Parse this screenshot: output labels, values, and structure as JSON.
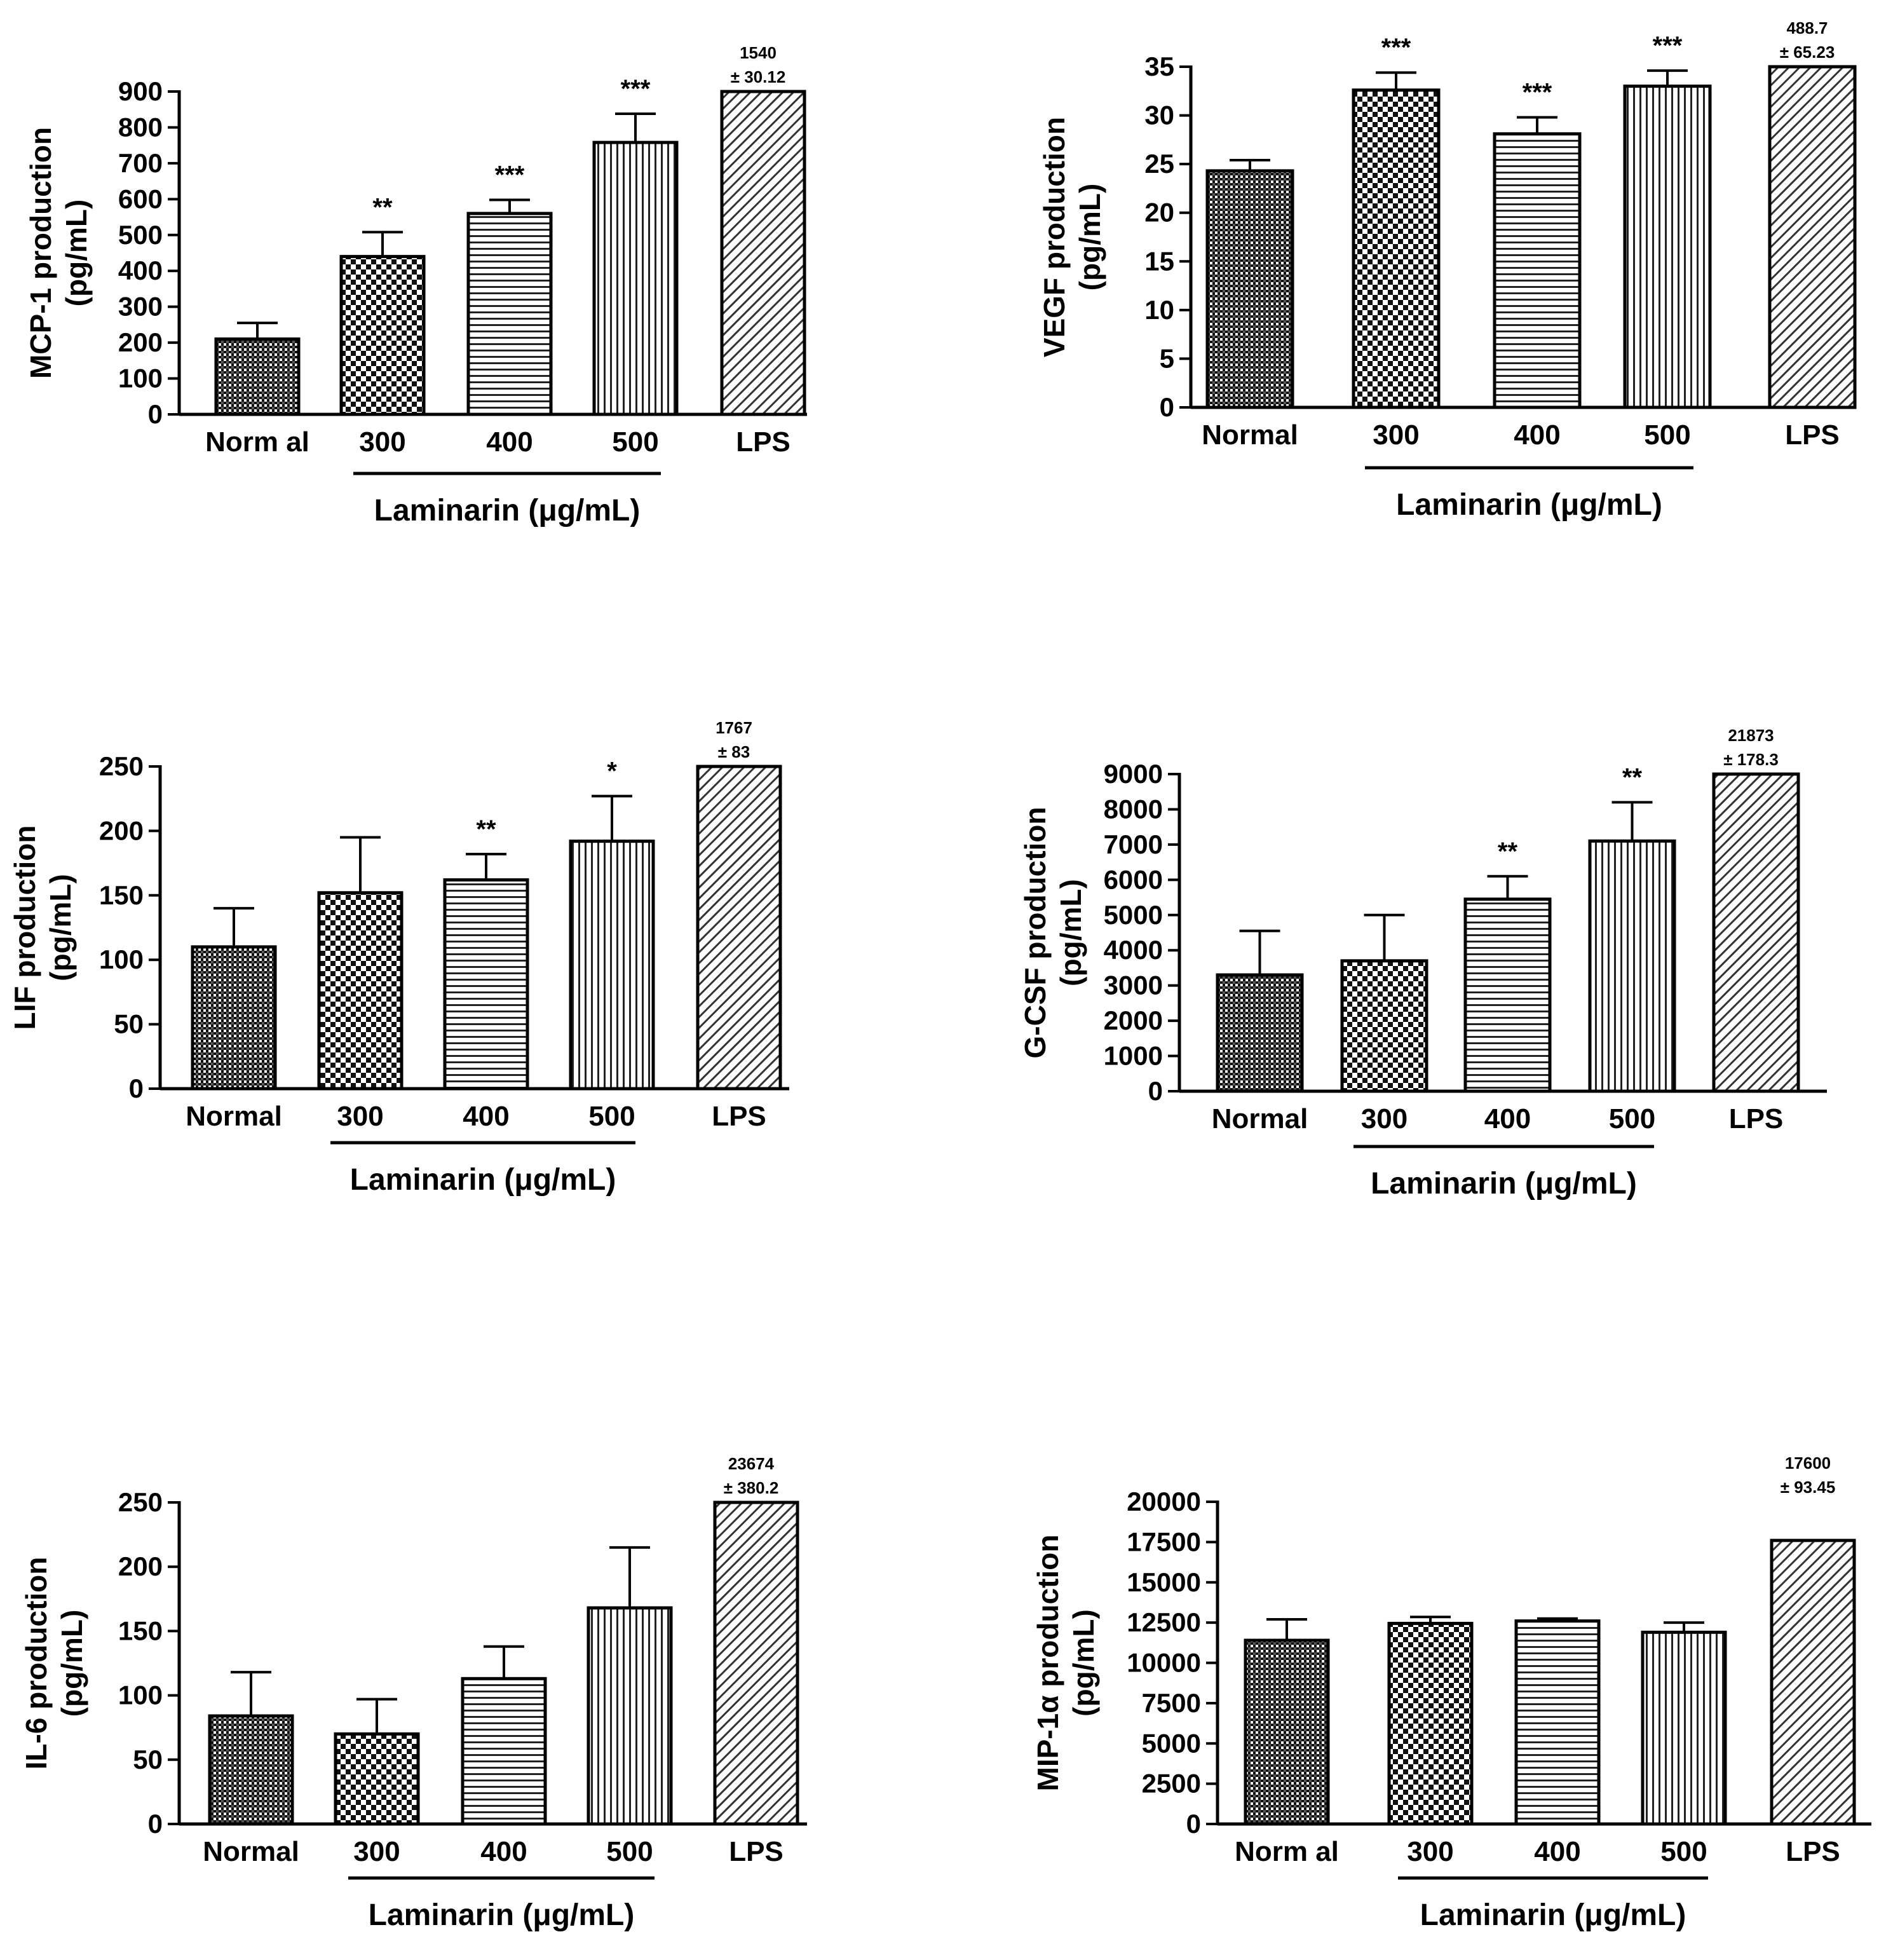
{
  "chart_data": [
    {
      "type": "bar",
      "ylabel": [
        "MCP-1 production",
        "(pg/mL)"
      ],
      "categories": [
        "Norm al",
        "300",
        "400",
        "500",
        "LPS"
      ],
      "values": [
        210,
        440,
        560,
        758,
        900
      ],
      "errors": [
        45,
        68,
        38,
        80,
        0
      ],
      "significance": [
        "",
        "**",
        "***",
        "***",
        ""
      ],
      "ylim": [
        0,
        900
      ],
      "yticks": [
        "0",
        "100",
        "200",
        "300",
        "400",
        "500",
        "600",
        "700",
        "800",
        "900"
      ],
      "group_label": "Laminarin (μg/mL)",
      "lps_annotation": [
        "1540",
        "±  30.12"
      ],
      "patterns": [
        "dense",
        "checker",
        "hlines",
        "vlines",
        "diag"
      ]
    },
    {
      "type": "bar",
      "ylabel": [
        "VEGF production",
        "(pg/mL)"
      ],
      "categories": [
        "Normal",
        "300",
        "400",
        "500",
        "LPS"
      ],
      "values": [
        24.3,
        32.6,
        28.1,
        33.0,
        35.0
      ],
      "errors": [
        1.1,
        1.8,
        1.7,
        1.6,
        0
      ],
      "significance": [
        "",
        "***",
        "***",
        "***",
        ""
      ],
      "ylim": [
        0,
        35
      ],
      "yticks": [
        "0",
        "5",
        "10",
        "15",
        "20",
        "25",
        "30",
        "35"
      ],
      "group_label": "Laminarin (μg/mL)",
      "lps_annotation": [
        "488.7",
        "±  65.23"
      ],
      "patterns": [
        "dense",
        "checker",
        "hlines",
        "vlines",
        "diag"
      ]
    },
    {
      "type": "bar",
      "ylabel": [
        "LIF production",
        "(pg/mL)"
      ],
      "categories": [
        "Normal",
        "300",
        "400",
        "500",
        "LPS"
      ],
      "values": [
        110,
        152,
        162,
        192,
        250
      ],
      "errors": [
        30,
        43,
        20,
        35,
        0
      ],
      "significance": [
        "",
        "",
        "**",
        "*",
        ""
      ],
      "ylim": [
        0,
        250
      ],
      "yticks": [
        "0",
        "50",
        "100",
        "150",
        "200",
        "250"
      ],
      "group_label": "Laminarin (μg/mL)",
      "lps_annotation": [
        "1767",
        "±  83"
      ],
      "patterns": [
        "dense",
        "checker",
        "hlines",
        "vlines",
        "diag"
      ]
    },
    {
      "type": "bar",
      "ylabel": [
        "G-CSF production",
        "(pg/mL)"
      ],
      "categories": [
        "Normal",
        "300",
        "400",
        "500",
        "LPS"
      ],
      "values": [
        3300,
        3700,
        5450,
        7100,
        9000
      ],
      "errors": [
        1250,
        1300,
        650,
        1100,
        0
      ],
      "significance": [
        "",
        "",
        "**",
        "**",
        ""
      ],
      "ylim": [
        0,
        9000
      ],
      "yticks": [
        "0",
        "1000",
        "2000",
        "3000",
        "4000",
        "5000",
        "6000",
        "7000",
        "8000",
        "9000"
      ],
      "group_label": "Laminarin (μg/mL)",
      "lps_annotation": [
        "21873",
        "±  178.3"
      ],
      "patterns": [
        "dense",
        "checker",
        "hlines",
        "vlines",
        "diag"
      ]
    },
    {
      "type": "bar",
      "ylabel": [
        "IL-6 production",
        "(pg/mL)"
      ],
      "categories": [
        "Normal",
        "300",
        "400",
        "500",
        "LPS"
      ],
      "values": [
        84,
        70,
        113,
        168,
        250
      ],
      "errors": [
        34,
        27,
        25,
        47,
        0
      ],
      "significance": [
        "",
        "",
        "",
        "",
        ""
      ],
      "ylim": [
        0,
        250
      ],
      "yticks": [
        "0",
        "50",
        "100",
        "150",
        "200",
        "250"
      ],
      "group_label": "Laminarin (μg/mL)",
      "lps_annotation": [
        "23674",
        "±  380.2"
      ],
      "patterns": [
        "dense",
        "checker",
        "hlines",
        "vlines",
        "diag"
      ]
    },
    {
      "type": "bar",
      "ylabel": [
        "MIP-1α  production",
        "(pg/mL)"
      ],
      "categories": [
        "Norm al",
        "300",
        "400",
        "500",
        "LPS"
      ],
      "values": [
        11400,
        12450,
        12600,
        11900,
        17600
      ],
      "errors": [
        1300,
        400,
        150,
        600,
        0
      ],
      "significance": [
        "",
        "",
        "",
        "",
        ""
      ],
      "ylim": [
        0,
        20000
      ],
      "yticks": [
        "0",
        "2500",
        "5000",
        "7500",
        "10000",
        "12500",
        "15000",
        "17500",
        "20000"
      ],
      "group_label": "Laminarin (μg/mL)",
      "lps_annotation": [
        "17600",
        "±  93.45"
      ],
      "patterns": [
        "dense",
        "checker",
        "hlines",
        "vlines",
        "diag"
      ]
    }
  ]
}
